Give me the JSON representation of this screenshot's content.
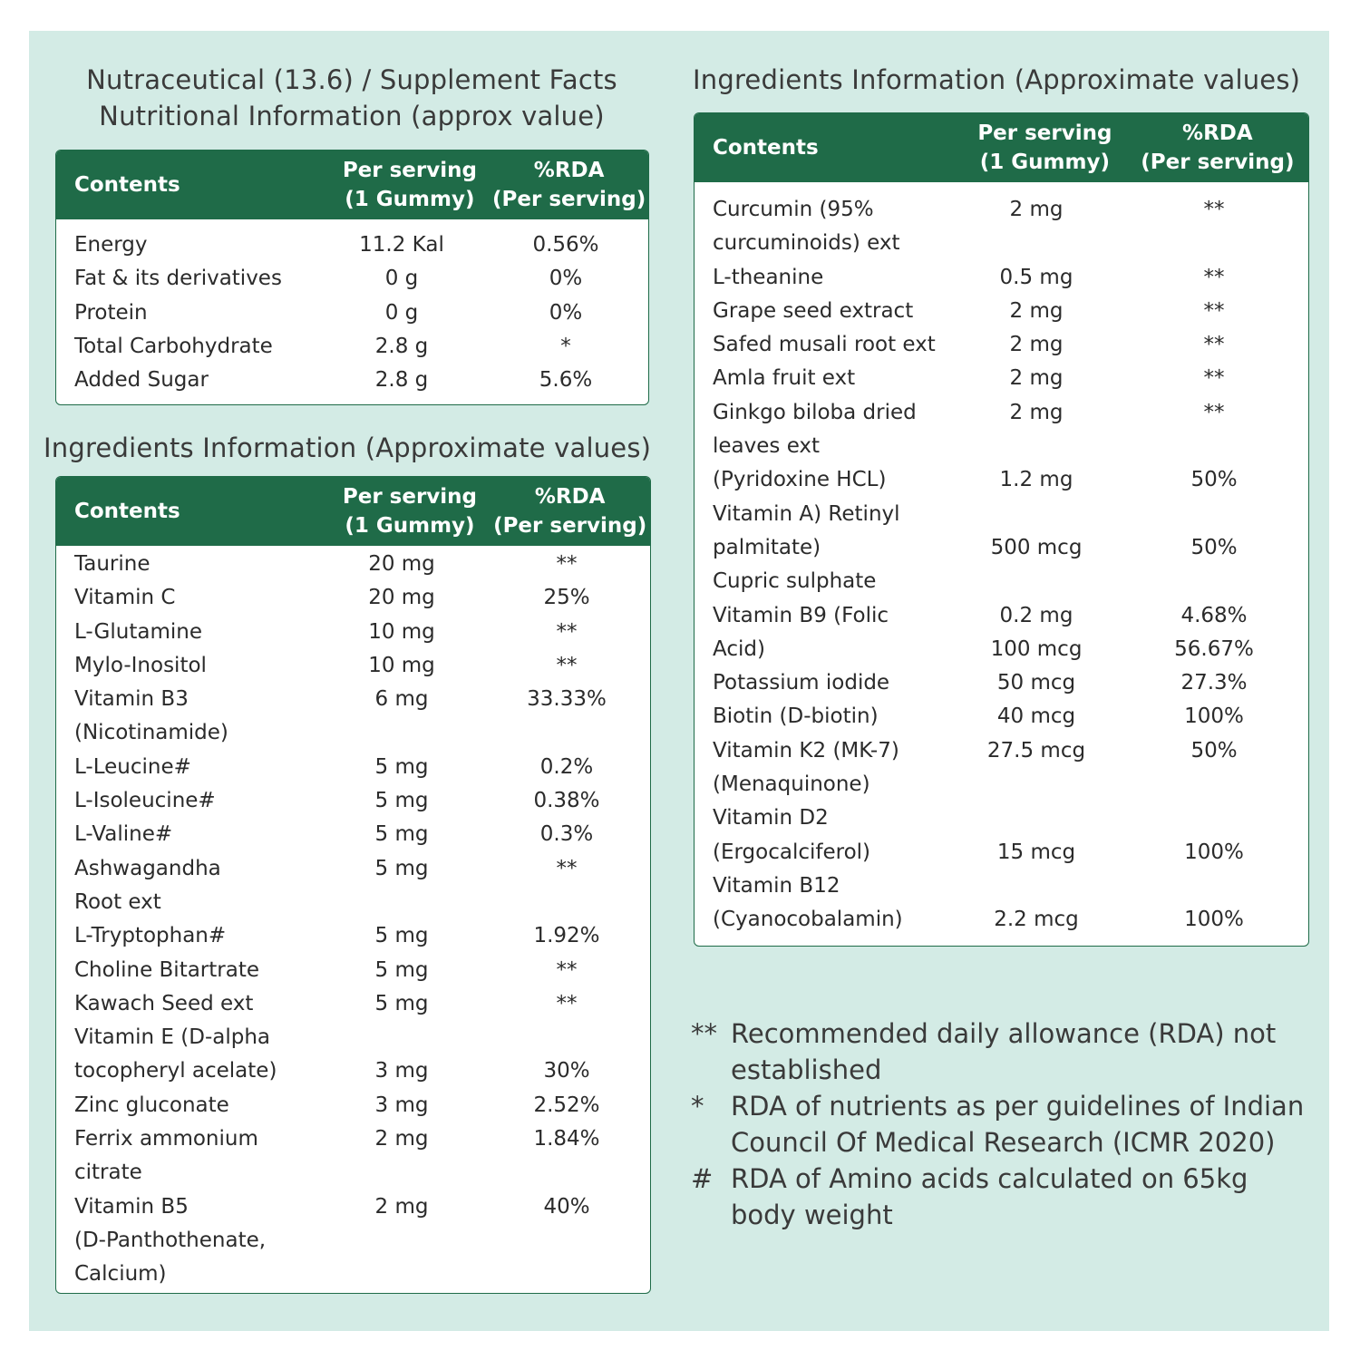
{
  "facts": {
    "title_line1": "Nutraceutical (13.6) / Supplement Facts",
    "title_line2": "Nutritional Information (approx value)",
    "header": {
      "contents": "Contents",
      "per_serving_line1": "Per serving",
      "per_serving_line2": "(1 Gummy)",
      "rda_line1": "%RDA",
      "rda_line2": "(Per serving)"
    },
    "rows": [
      {
        "name": "Energy",
        "amount": "11.2 Kal",
        "rda": "0.56%"
      },
      {
        "name": "Fat & its derivatives",
        "amount": "0 g",
        "rda": "0%"
      },
      {
        "name": "Protein",
        "amount": "0 g",
        "rda": "0%"
      },
      {
        "name": "Total Carbohydrate",
        "amount": "2.8 g",
        "rda": "*"
      },
      {
        "name": "Added Sugar",
        "amount": "2.8 g",
        "rda": "5.6%"
      }
    ]
  },
  "ingredients_left": {
    "title": "Ingredients Information (Approximate values)",
    "header": {
      "contents": "Contents",
      "per_serving_line1": "Per serving",
      "per_serving_line2": "(1 Gummy)",
      "rda_line1": "%RDA",
      "rda_line2": "(Per serving)"
    },
    "rows": [
      {
        "name": "Taurine",
        "amount": "20 mg",
        "rda": "**"
      },
      {
        "name": "Vitamin C",
        "amount": "20 mg",
        "rda": "25%"
      },
      {
        "name": "L-Glutamine",
        "amount": "10 mg",
        "rda": "**"
      },
      {
        "name": "Mylo-Inositol",
        "amount": "10 mg",
        "rda": "**"
      },
      {
        "name": "Vitamin B3",
        "amount": "6 mg",
        "rda": "33.33%"
      },
      {
        "name": "(Nicotinamide)",
        "amount": "",
        "rda": ""
      },
      {
        "name": "L-Leucine#",
        "amount": "5 mg",
        "rda": "0.2%"
      },
      {
        "name": "L-Isoleucine#",
        "amount": "5 mg",
        "rda": "0.38%"
      },
      {
        "name": "L-Valine#",
        "amount": "5 mg",
        "rda": "0.3%"
      },
      {
        "name": "Ashwagandha",
        "amount": "5 mg",
        "rda": "**"
      },
      {
        "name": "Root ext",
        "amount": "",
        "rda": ""
      },
      {
        "name": "L-Tryptophan#",
        "amount": "5 mg",
        "rda": "1.92%"
      },
      {
        "name": "Choline Bitartrate",
        "amount": "5 mg",
        "rda": "**"
      },
      {
        "name": "Kawach Seed ext",
        "amount": "5 mg",
        "rda": "**"
      },
      {
        "name": "Vitamin E (D-alpha",
        "amount": "",
        "rda": ""
      },
      {
        "name": "tocopheryl acelate)",
        "amount": "3 mg",
        "rda": "30%"
      },
      {
        "name": "Zinc gluconate",
        "amount": "3 mg",
        "rda": "2.52%"
      },
      {
        "name": "Ferrix ammonium",
        "amount": "2 mg",
        "rda": "1.84%"
      },
      {
        "name": "citrate",
        "amount": "",
        "rda": ""
      },
      {
        "name": "Vitamin B5",
        "amount": "2 mg",
        "rda": "40%"
      },
      {
        "name": "(D-Panthothenate,",
        "amount": "",
        "rda": ""
      },
      {
        "name": "Calcium)",
        "amount": "",
        "rda": ""
      }
    ]
  },
  "ingredients_right": {
    "title": "Ingredients Information (Approximate values)",
    "header": {
      "contents": "Contents",
      "per_serving_line1": "Per serving",
      "per_serving_line2": "(1 Gummy)",
      "rda_line1": "%RDA",
      "rda_line2": "(Per serving)"
    },
    "rows": [
      {
        "name": "Curcumin (95%",
        "amount": "2 mg",
        "rda": "**"
      },
      {
        "name": "curcuminoids) ext",
        "amount": "",
        "rda": ""
      },
      {
        "name": "L-theanine",
        "amount": "0.5 mg",
        "rda": "**"
      },
      {
        "name": "Grape seed extract",
        "amount": "2 mg",
        "rda": "**"
      },
      {
        "name": "Safed musali root ext",
        "amount": "2 mg",
        "rda": "**"
      },
      {
        "name": "Amla fruit ext",
        "amount": "2 mg",
        "rda": "**"
      },
      {
        "name": "Ginkgo biloba dried",
        "amount": "2 mg",
        "rda": "**"
      },
      {
        "name": "leaves ext",
        "amount": "",
        "rda": ""
      },
      {
        "name": "(Pyridoxine HCL)",
        "amount": "1.2 mg",
        "rda": "50%"
      },
      {
        "name": "Vitamin A) Retinyl",
        "amount": "",
        "rda": ""
      },
      {
        "name": "palmitate)",
        "amount": "500 mcg",
        "rda": "50%"
      },
      {
        "name": "Cupric sulphate",
        "amount": "",
        "rda": ""
      },
      {
        "name": "Vitamin B9 (Folic",
        "amount": "0.2 mg",
        "rda": "4.68%"
      },
      {
        "name": "Acid)",
        "amount": "100 mcg",
        "rda": "56.67%"
      },
      {
        "name": "Potassium iodide",
        "amount": "50 mcg",
        "rda": "27.3%"
      },
      {
        "name": "Biotin (D-biotin)",
        "amount": "40 mcg",
        "rda": "100%"
      },
      {
        "name": "Vitamin K2 (MK-7)",
        "amount": "27.5 mcg",
        "rda": "50%"
      },
      {
        "name": "(Menaquinone)",
        "amount": "",
        "rda": ""
      },
      {
        "name": "Vitamin D2",
        "amount": "",
        "rda": ""
      },
      {
        "name": "(Ergocalciferol)",
        "amount": "15 mcg",
        "rda": "100%"
      },
      {
        "name": "Vitamin B12",
        "amount": "",
        "rda": ""
      },
      {
        "name": "(Cyanocobalamin)",
        "amount": "2.2 mcg",
        "rda": "100%"
      }
    ]
  },
  "notes": [
    {
      "symbol": "**",
      "text": "Recommended daily allowance (RDA) not established"
    },
    {
      "symbol": "*",
      "text": "RDA of nutrients as per guidelines of Indian Council Of Medical Research (ICMR 2020)"
    },
    {
      "symbol": "#",
      "text": "RDA of Amino acids calculated on 65kg body weight"
    }
  ],
  "colors": {
    "background": "#d3ebe5",
    "header_green": "#1f6b48"
  }
}
